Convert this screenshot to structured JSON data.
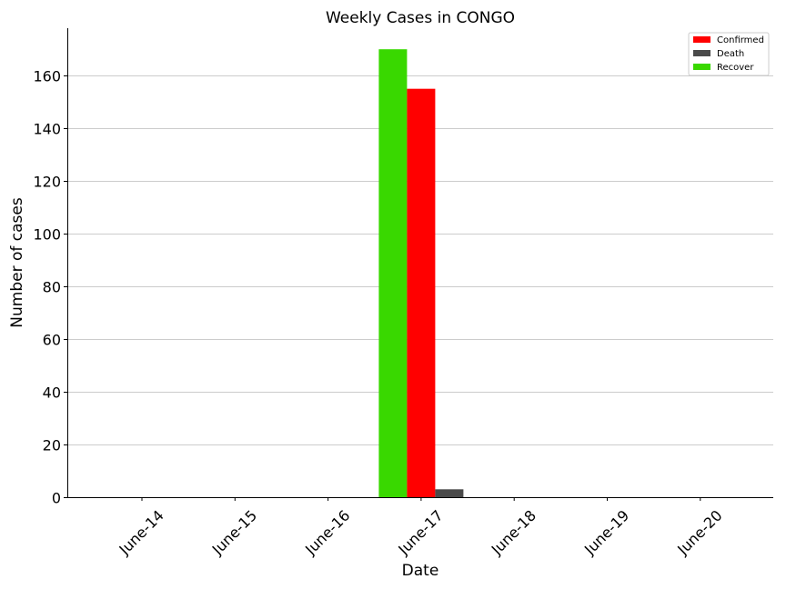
{
  "chart_data": {
    "type": "bar",
    "title": "Weekly Cases in CONGO",
    "xlabel": "Date",
    "ylabel": "Number of cases",
    "categories": [
      "June-14",
      "June-15",
      "June-16",
      "June-17",
      "June-18",
      "June-19",
      "June-20"
    ],
    "series": [
      {
        "name": "Recover",
        "color": "#39d800",
        "values": [
          0,
          0,
          0,
          170,
          0,
          0,
          0
        ]
      },
      {
        "name": "Confirmed",
        "color": "#ff0000",
        "values": [
          0,
          0,
          0,
          155,
          0,
          0,
          0
        ]
      },
      {
        "name": "Death",
        "color": "#4a4a4a",
        "values": [
          0,
          0,
          0,
          3,
          0,
          0,
          0
        ]
      }
    ],
    "legend_order": [
      "Confirmed",
      "Death",
      "Recover"
    ],
    "ylim": [
      0,
      178
    ],
    "yticks": [
      0,
      20,
      40,
      60,
      80,
      100,
      120,
      140,
      160
    ],
    "grid": "horizontal",
    "legend_position": "top-right"
  }
}
